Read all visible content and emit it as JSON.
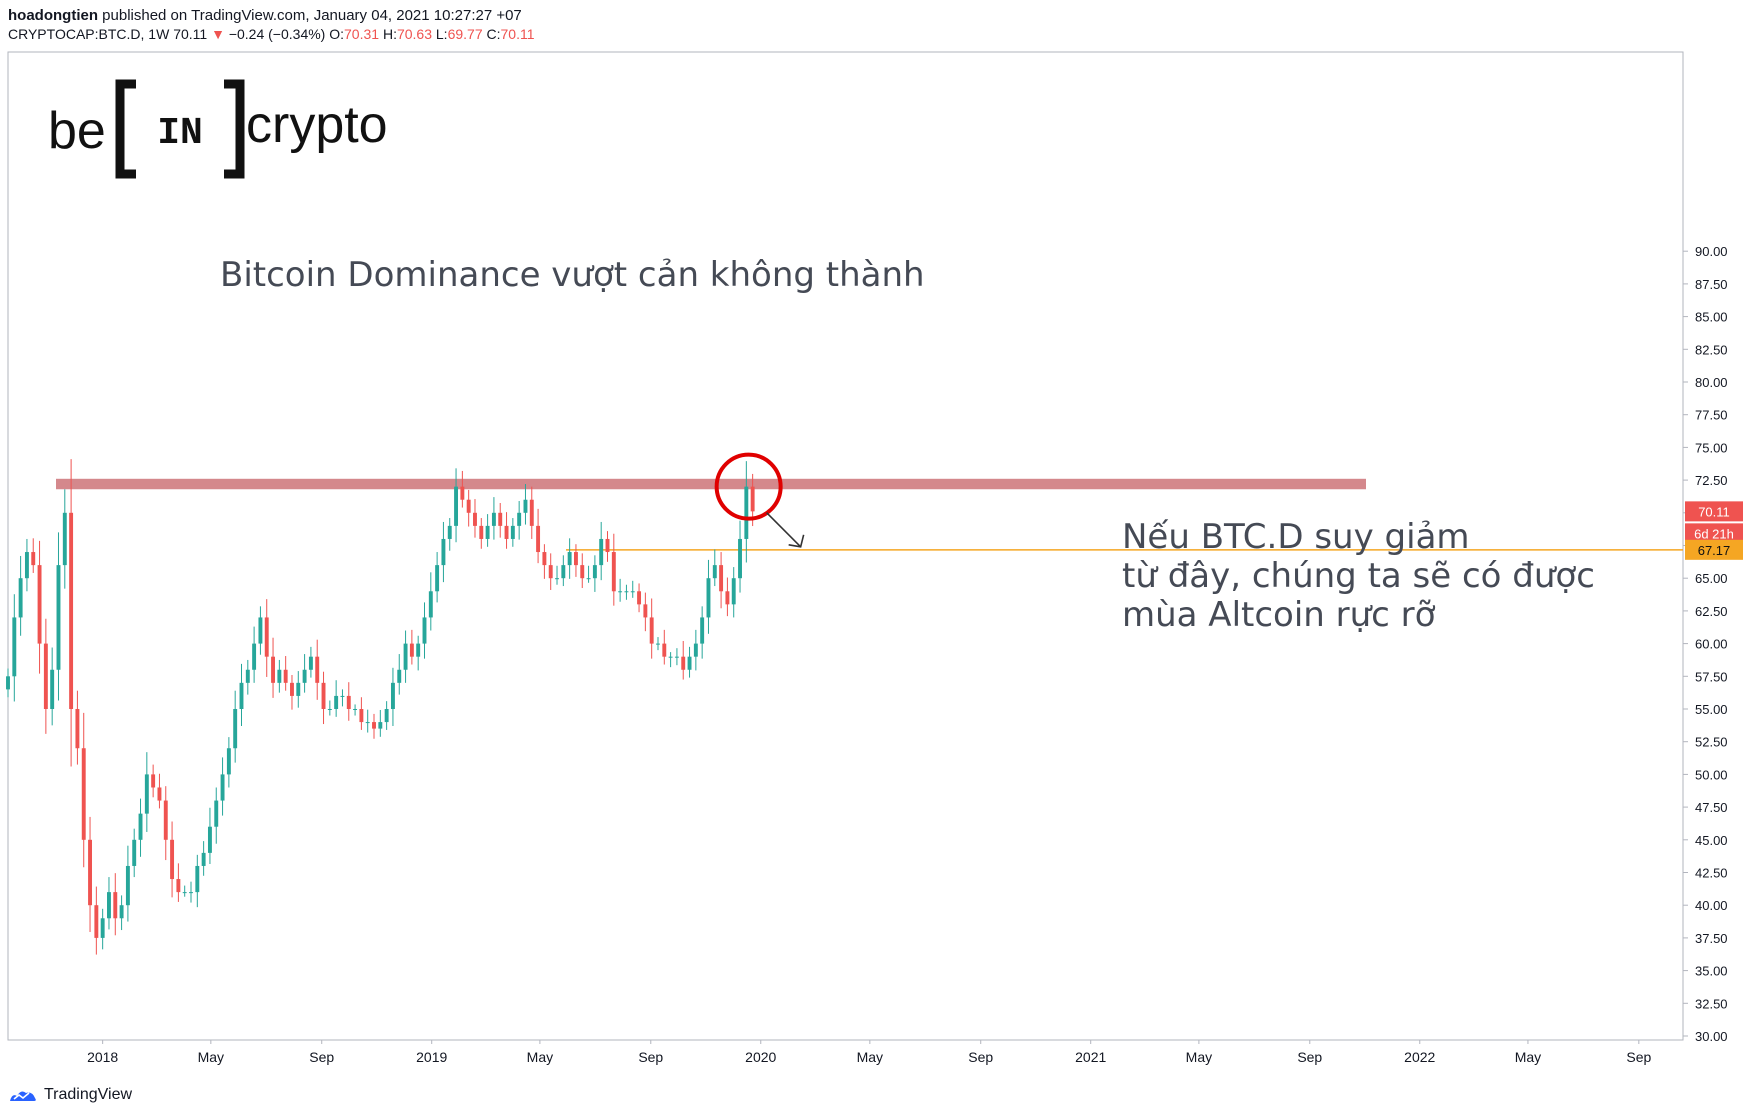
{
  "header": {
    "author": "hoadongtien",
    "published_text": " published on TradingView.com, January 04, 2021 10:27:27 +07",
    "symbol": "CRYPTOCAP:BTC.D, 1W",
    "last": "70.11",
    "change": "−0.24 (−0.34%)",
    "o_label": "O:",
    "o_value": "70.31",
    "h_label": "H:",
    "h_value": "70.63",
    "l_label": "L:",
    "l_value": "69.77",
    "c_label": "C:",
    "c_value": "70.11"
  },
  "logo": {
    "left": "be",
    "middle": "IN",
    "right": "crypto"
  },
  "annotations": {
    "title": "Bitcoin Dominance vượt cản không thành",
    "note_lines": [
      "Nếu BTC.D suy giảm",
      "từ đây, chúng ta sẽ có được",
      "mùa Altcoin rực rỡ"
    ]
  },
  "price_labels": {
    "last": "70.11",
    "countdown": "6d 21h",
    "support": "67.17"
  },
  "footer": {
    "brand": "TradingView"
  },
  "colors": {
    "up": "#26a69a",
    "down": "#ef5350",
    "resistance": "#d4888c",
    "support": "#f5a623",
    "circle": "#e00000"
  },
  "chart_data": {
    "type": "candlestick",
    "interval": "1W",
    "y_ticks": [
      "30.00",
      "32.50",
      "35.00",
      "37.50",
      "40.00",
      "42.50",
      "45.00",
      "47.50",
      "50.00",
      "52.50",
      "55.00",
      "57.50",
      "60.00",
      "62.50",
      "65.00",
      "67.50",
      "70.00",
      "72.50",
      "75.00",
      "77.50",
      "80.00",
      "82.50",
      "85.00",
      "87.50",
      "90.00"
    ],
    "ylim": [
      30,
      90
    ],
    "x_ticks": [
      "2018",
      "May",
      "Sep",
      "2019",
      "May",
      "Sep",
      "2020",
      "May",
      "Sep",
      "2021",
      "May",
      "Sep",
      "2022",
      "May",
      "Sep"
    ],
    "x_tick_dates": [
      "2018-01-01",
      "2018-05-01",
      "2018-09-01",
      "2019-01-01",
      "2019-05-01",
      "2019-09-01",
      "2020-01-01",
      "2020-05-01",
      "2020-09-01",
      "2021-01-01",
      "2021-05-01",
      "2021-09-01",
      "2022-01-01",
      "2022-05-01",
      "2022-09-01"
    ],
    "x_range": [
      "2017-09-18",
      "2022-10-20"
    ],
    "first_candle": "2017-09-18",
    "resistance_zone": [
      71.8,
      72.6
    ],
    "support_level": 67.17,
    "close_path": [
      57.5,
      62,
      65,
      67,
      66,
      60,
      55,
      58,
      66,
      70,
      55,
      52,
      45,
      40,
      37.5,
      39,
      41,
      39,
      40,
      43,
      45,
      47,
      50,
      49,
      48,
      45,
      42,
      41,
      41,
      41,
      43,
      44,
      46,
      48,
      50,
      52,
      55,
      57,
      58,
      60,
      62,
      59,
      57,
      58,
      57,
      56,
      57,
      58,
      59,
      57,
      55,
      55,
      56,
      56,
      55,
      55,
      54,
      54,
      53.5,
      54,
      55,
      57,
      58,
      60,
      59,
      60,
      62,
      64,
      66,
      68,
      69,
      72,
      71,
      70,
      69,
      68,
      69,
      70,
      69,
      68,
      69,
      70,
      71,
      69,
      67,
      66,
      65,
      65,
      66,
      67,
      66,
      65,
      65,
      66,
      68,
      67,
      64,
      64,
      64,
      64,
      63,
      62,
      60,
      60,
      59,
      59,
      59,
      58,
      59,
      60,
      62,
      65,
      66,
      64,
      63,
      65,
      68,
      72,
      70.11
    ]
  }
}
